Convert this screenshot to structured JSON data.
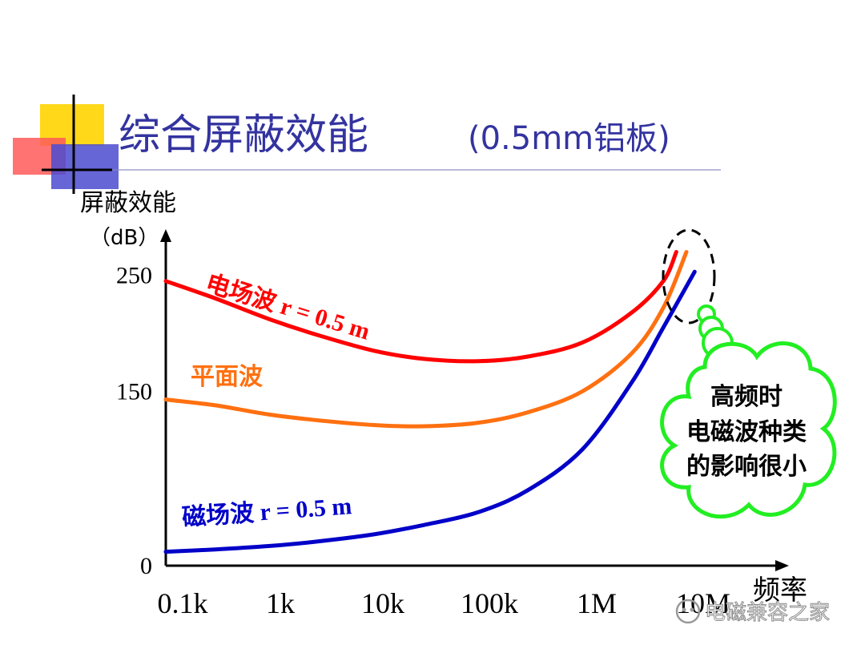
{
  "slide": {
    "title_main": "综合屏蔽效能",
    "title_sub": "(0.5mm铝板)"
  },
  "chart_data": {
    "type": "line",
    "ylabel_line1": "屏蔽效能",
    "ylabel_line2": "（dB）",
    "xlabel": "频率",
    "x_ticks": [
      "0.1k",
      "1k",
      "10k",
      "100k",
      "1M",
      "10M"
    ],
    "x_scale": "log",
    "y_ticks": [
      0,
      150,
      250
    ],
    "ylim": [
      0,
      280
    ],
    "series": [
      {
        "name": "电场波 r = 0.5 m",
        "color": "#ff0000",
        "x": [
          100,
          300,
          1000,
          3000,
          10000,
          30000,
          100000,
          300000,
          1000000,
          3000000,
          6000000,
          8000000
        ],
        "y": [
          245,
          230,
          212,
          198,
          185,
          178,
          176,
          180,
          192,
          218,
          245,
          270
        ]
      },
      {
        "name": "平面波",
        "color": "#ff7010",
        "x": [
          100,
          300,
          1000,
          3000,
          10000,
          30000,
          100000,
          300000,
          1000000,
          3000000,
          6000000,
          10000000
        ],
        "y": [
          143,
          138,
          130,
          125,
          121,
          120,
          123,
          132,
          150,
          183,
          222,
          270
        ]
      },
      {
        "name": "磁场波 r = 0.5 m",
        "color": "#0000c8",
        "x": [
          100,
          300,
          1000,
          3000,
          10000,
          30000,
          100000,
          300000,
          1000000,
          3000000,
          6000000,
          12000000
        ],
        "y": [
          12,
          14,
          17,
          21,
          27,
          35,
          46,
          65,
          100,
          158,
          205,
          253
        ]
      }
    ],
    "annotation": {
      "line1": "高频时",
      "line2": "电磁波种类",
      "line3": "的影响很小"
    }
  },
  "watermark": "电磁兼容之家",
  "colors": {
    "title": "#3333a0",
    "axis": "#000000",
    "cloud": "#22ee22"
  }
}
